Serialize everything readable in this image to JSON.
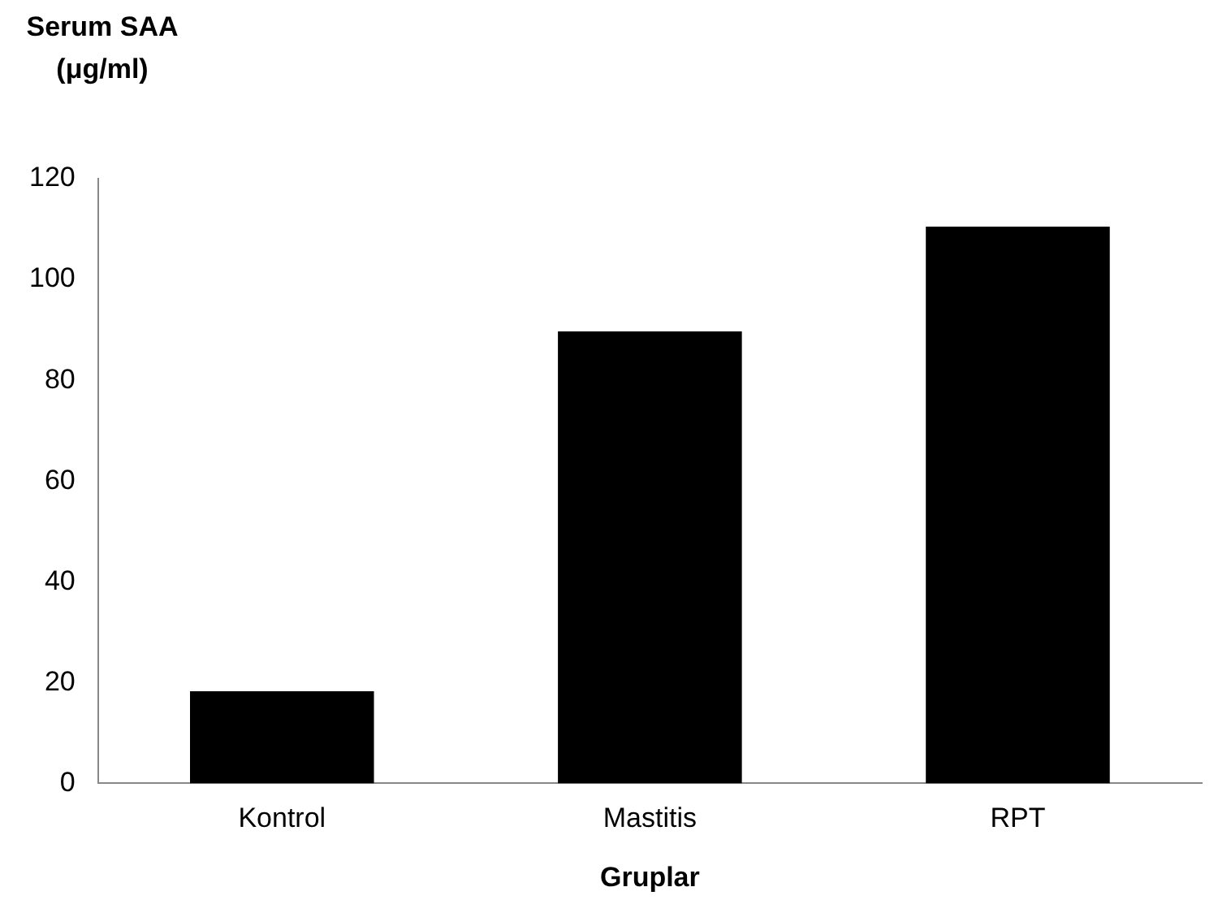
{
  "chart_data": {
    "type": "bar",
    "ylabel": "Serum SAA (μg/ml)",
    "xlabel": "Gruplar",
    "categories": [
      "Kontrol",
      "Mastitis",
      "RPT"
    ],
    "values": [
      18.3,
      89.7,
      110.5
    ],
    "color": "#000000",
    "ylim": [
      0,
      120
    ],
    "yticks": [
      0,
      20,
      40,
      60,
      80,
      100,
      120
    ],
    "grid": false,
    "legend": false
  }
}
